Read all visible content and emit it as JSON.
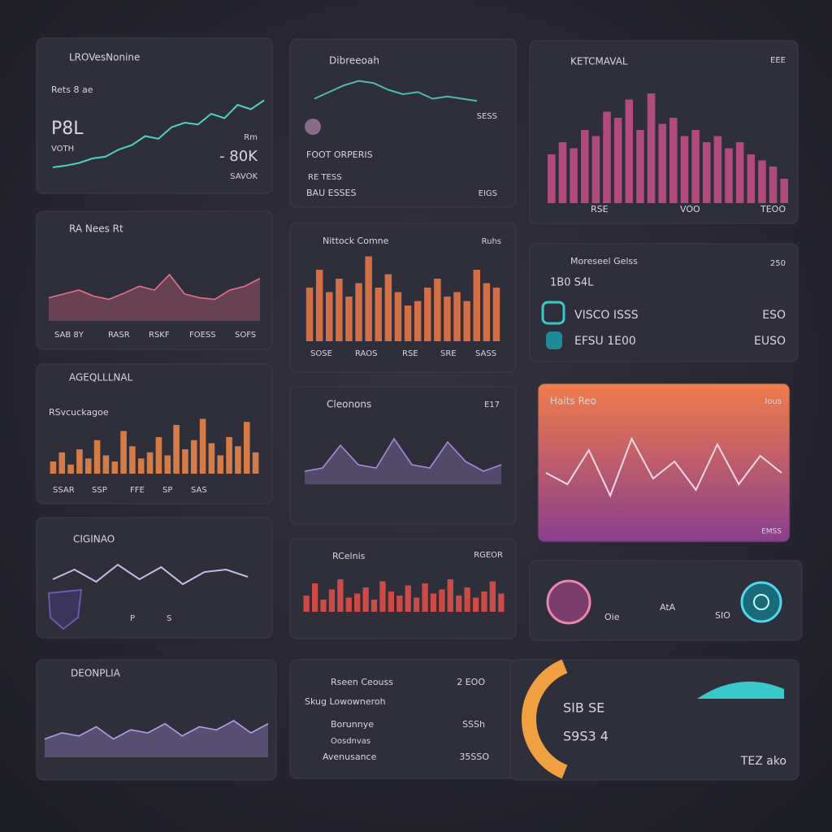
{
  "cards": [
    {
      "texts": [
        "LROVesNonine",
        "Rets 8 ae",
        "P8L",
        "VOTH",
        "Rm",
        "- 80K",
        "SAVOK"
      ],
      "chart": {
        "type": "line",
        "color": "#4fd1c5",
        "ylim": [
          0,
          100
        ],
        "values": [
          10,
          12,
          15,
          20,
          22,
          30,
          35,
          45,
          42,
          55,
          60,
          58,
          70,
          65,
          80,
          75,
          85
        ]
      }
    },
    {
      "texts": [
        "RA Nees Rt",
        "SAB 8Y",
        "RASR",
        "RSKF",
        "FOESS",
        "SOFS"
      ],
      "chart": {
        "type": "area",
        "color": "#e8708a",
        "ylim": [
          0,
          100
        ],
        "values": [
          30,
          35,
          40,
          32,
          28,
          36,
          45,
          40,
          60,
          35,
          30,
          28,
          40,
          45,
          55
        ]
      }
    },
    {
      "texts": [
        "AGEQLLLNAL",
        "RSvcuckagoe",
        "SSAR",
        "SSP",
        "FFE",
        "SP",
        "SAS"
      ],
      "chart": {
        "type": "bar",
        "color": "#f08a4b",
        "ylim": [
          0,
          100
        ],
        "values": [
          20,
          35,
          15,
          40,
          25,
          55,
          30,
          20,
          70,
          45,
          25,
          35,
          60,
          30,
          80,
          40,
          55,
          90,
          50,
          30,
          60,
          45,
          85,
          35
        ]
      }
    },
    {
      "texts": [
        "CIGINAO",
        "P",
        "S"
      ],
      "chart": {
        "type": "line",
        "color": "#c9b8e8",
        "ylim": [
          0,
          100
        ],
        "values": [
          40,
          60,
          35,
          70,
          40,
          65,
          30,
          55,
          60,
          45
        ]
      }
    },
    {
      "texts": [
        "DEONPLIA"
      ],
      "chart": {
        "type": "area",
        "color": "#b79be8",
        "ylim": [
          0,
          100
        ],
        "values": [
          30,
          40,
          35,
          50,
          30,
          45,
          40,
          55,
          35,
          50,
          45,
          60,
          40,
          55
        ]
      }
    },
    {
      "texts": [
        "Dibreeoah",
        "SESS",
        "FOOT ORPERIS",
        "RE TESS",
        "BAU ESSES",
        "EIGS"
      ],
      "chart": {
        "type": "line",
        "color": "#4fb8b0",
        "ylim": [
          0,
          100
        ],
        "values": [
          30,
          45,
          60,
          70,
          65,
          50,
          40,
          45,
          30,
          35,
          30,
          25
        ]
      }
    },
    {
      "texts": [
        "Nittock Comne",
        "Ruhs",
        "SOSE",
        "RAOS",
        "RSE",
        "SRE",
        "SASS"
      ],
      "chart": {
        "type": "bar",
        "color": "#f07a4a",
        "ylim": [
          0,
          100
        ],
        "values": [
          60,
          80,
          55,
          70,
          50,
          65,
          95,
          60,
          75,
          55,
          40,
          45,
          60,
          70,
          50,
          55,
          45,
          80,
          65,
          60
        ]
      }
    },
    {
      "texts": [
        "Cleonons",
        "E17"
      ],
      "chart": {
        "type": "area",
        "color": "#a88ad8",
        "ylim": [
          0,
          100
        ],
        "values": [
          20,
          25,
          60,
          30,
          25,
          70,
          30,
          25,
          65,
          35,
          20,
          30
        ]
      }
    },
    {
      "texts": [
        "RCelnis",
        "RGEOR"
      ],
      "chart": {
        "type": "bar",
        "color": "#e8504a",
        "ylim": [
          0,
          100
        ],
        "values": [
          40,
          70,
          30,
          55,
          80,
          35,
          45,
          60,
          30,
          75,
          50,
          40,
          65,
          35,
          70,
          45,
          55,
          80,
          40,
          60,
          35,
          50,
          75,
          45
        ]
      }
    },
    {
      "texts": [
        "Rseen Ceouss",
        "2 EOO",
        "Skug Lowowneroh",
        "Borunnye",
        "SSSh",
        "Oosdnvas",
        "Avenusance",
        "35SSO"
      ]
    },
    {
      "texts": [
        "KETCMAVAL",
        "EEE",
        "RSE",
        "VOO",
        "TEOO"
      ],
      "chart": {
        "type": "bar",
        "color": "#c8508a",
        "ylim": [
          0,
          100
        ],
        "values": [
          40,
          50,
          45,
          60,
          55,
          75,
          70,
          85,
          60,
          90,
          65,
          70,
          55,
          60,
          50,
          55,
          45,
          50,
          40,
          35,
          30,
          20
        ]
      }
    },
    {
      "texts": [
        "Moreseel Gelss",
        "250",
        "1B0 S4L",
        "VISCO ISSS",
        "ESO",
        "EFSU 1E00",
        "EUSO"
      ]
    },
    {
      "texts": [
        "Haits Reo",
        "Ious",
        "EMSS"
      ],
      "chart": {
        "type": "line",
        "color": "#f3d8e8",
        "ylim": [
          0,
          100
        ],
        "values": [
          50,
          40,
          70,
          30,
          80,
          45,
          60,
          35,
          75,
          40,
          65,
          50
        ]
      }
    },
    {
      "texts": [
        "Oie",
        "AtA",
        "SIO"
      ]
    },
    {
      "texts": [
        "SIB SE",
        "S9S3 4",
        "TEZ ako"
      ]
    }
  ]
}
